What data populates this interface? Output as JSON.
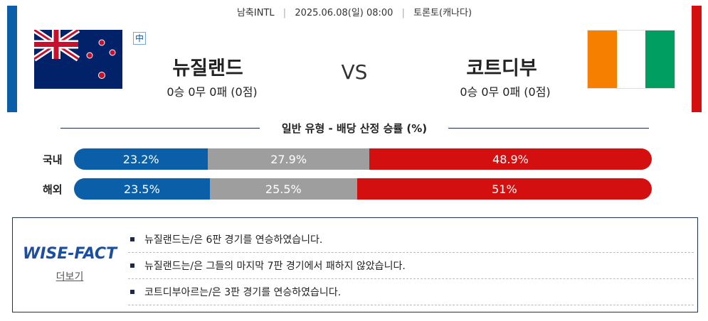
{
  "header": {
    "league": "남축INTL",
    "datetime": "2025.06.08(일) 08:00",
    "venue": "토론토(캐나다)"
  },
  "home": {
    "name": "뉴질랜드",
    "record": "0승 0무 0패 (0점)",
    "badge": "中"
  },
  "vs": "VS",
  "away": {
    "name": "코트디부",
    "record": "0승 0무 0패 (0점)"
  },
  "odds": {
    "title": "일반 유형 - 배당 산정 승률 (%)",
    "colors": [
      "#0b5ea8",
      "#9e9e9e",
      "#d40f0f"
    ],
    "rows": [
      {
        "label": "국내",
        "values": [
          23.2,
          27.9,
          48.9
        ],
        "value_labels": [
          "23.2%",
          "27.9%",
          "48.9%"
        ]
      },
      {
        "label": "해외",
        "values": [
          23.5,
          25.5,
          51
        ],
        "value_labels": [
          "23.5%",
          "25.5%",
          "51%"
        ]
      }
    ]
  },
  "facts": {
    "logo": "WISE-FACT",
    "more": "더보기",
    "items": [
      "뉴질랜드는/은 6판 경기를 연승하였습니다.",
      "뉴질랜드는/은 그들의 마지막 7판 경기에서 패하지 않았습니다.",
      "코트디부아르는/은 3판 경기를 연승하였습니다."
    ]
  }
}
